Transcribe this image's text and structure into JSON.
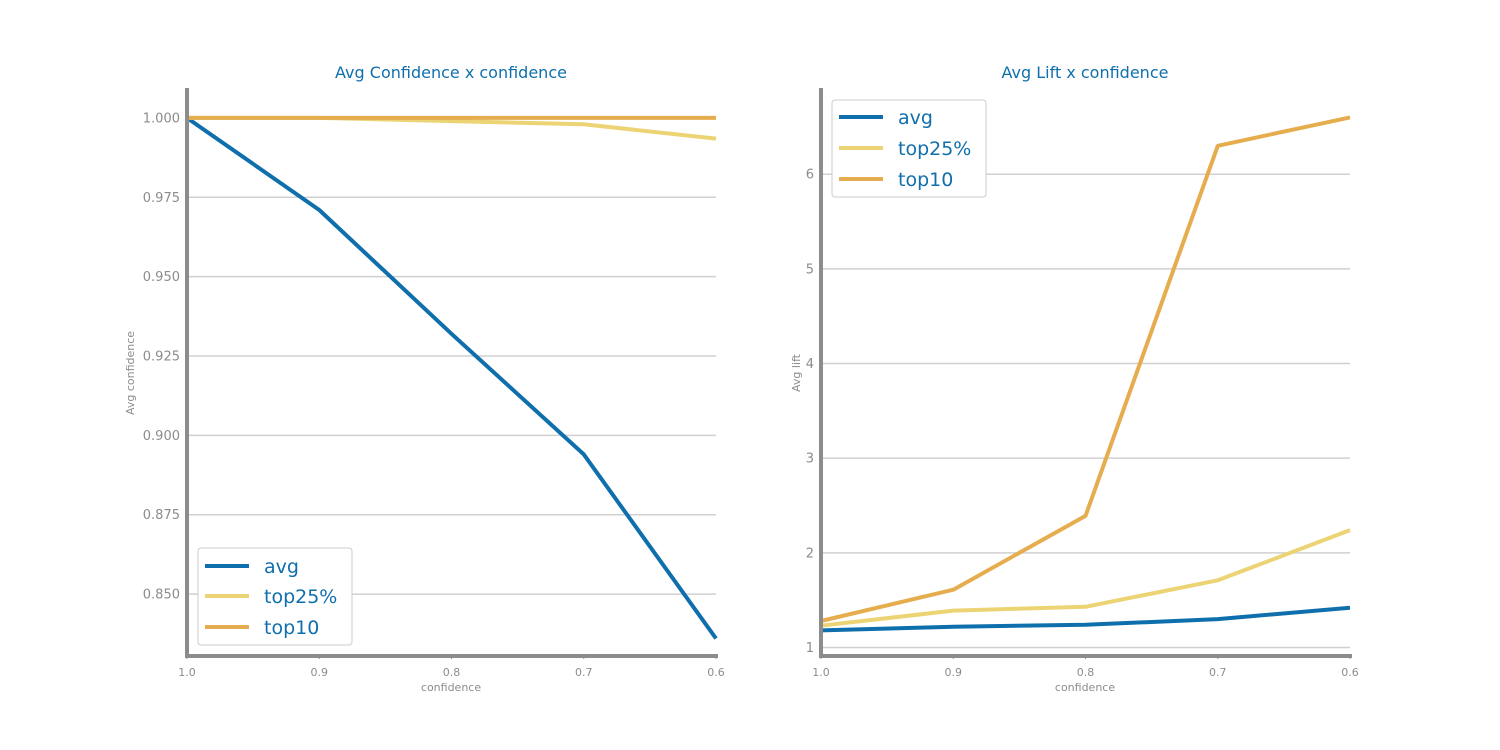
{
  "colors": {
    "avg": "#0f6fad",
    "top25": "#ecd474",
    "top10": "#e6ad4f",
    "text": "#0f6fad",
    "axis": "#8c8c8c",
    "grid": "#d0d0d0"
  },
  "chart_data": [
    {
      "type": "line",
      "title": "Avg Confidence x confidence",
      "xlabel": "confidence",
      "ylabel": "Avg confidence",
      "categories": [
        "1.0",
        "0.9",
        "0.8",
        "0.7",
        "0.6"
      ],
      "x": [
        1.0,
        0.9,
        0.8,
        0.7,
        0.6
      ],
      "xlim": [
        1.0,
        0.6
      ],
      "ylim": [
        0.8305,
        1.0088
      ],
      "yticks": [
        1.0,
        0.975,
        0.95,
        0.925,
        0.9,
        0.875,
        0.85
      ],
      "yticklabels": [
        "1.000",
        "0.975",
        "0.950",
        "0.925",
        "0.900",
        "0.875",
        "0.850"
      ],
      "grid": "horizontal",
      "legend_position": "lower-left",
      "series": [
        {
          "name": "avg",
          "key": "avg",
          "values": [
            1.0,
            0.971,
            0.932,
            0.894,
            0.836
          ]
        },
        {
          "name": "top25%",
          "key": "top25",
          "values": [
            1.0,
            1.0,
            0.999,
            0.998,
            0.9935
          ]
        },
        {
          "name": "top10",
          "key": "top10",
          "values": [
            1.0,
            1.0,
            1.0,
            1.0,
            1.0
          ]
        }
      ]
    },
    {
      "type": "line",
      "title": "Avg Lift x confidence",
      "xlabel": "confidence",
      "ylabel": "Avg lift",
      "categories": [
        "1.0",
        "0.9",
        "0.8",
        "0.7",
        "0.6"
      ],
      "x": [
        1.0,
        0.9,
        0.8,
        0.7,
        0.6
      ],
      "xlim": [
        1.0,
        0.6
      ],
      "ylim": [
        0.91,
        6.89
      ],
      "yticks": [
        6,
        5,
        4,
        3,
        2,
        1
      ],
      "yticklabels": [
        "6",
        "5",
        "4",
        "3",
        "2",
        "1"
      ],
      "grid": "horizontal",
      "legend_position": "top-left",
      "series": [
        {
          "name": "avg",
          "key": "avg",
          "values": [
            1.18,
            1.22,
            1.24,
            1.3,
            1.42
          ]
        },
        {
          "name": "top25%",
          "key": "top25",
          "values": [
            1.23,
            1.39,
            1.43,
            1.71,
            2.24
          ]
        },
        {
          "name": "top10",
          "key": "top10",
          "values": [
            1.28,
            1.61,
            2.39,
            6.3,
            6.6
          ]
        }
      ]
    }
  ]
}
